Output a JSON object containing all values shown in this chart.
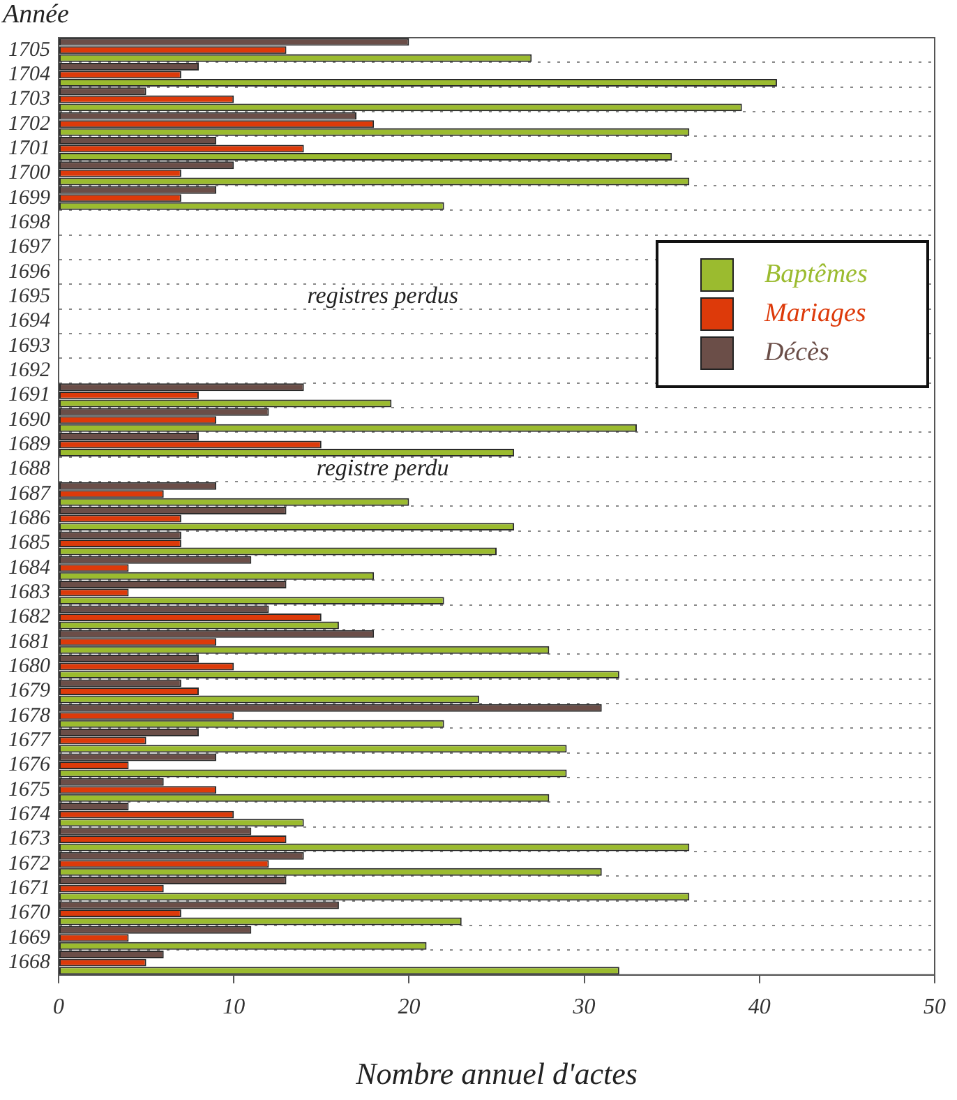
{
  "chart_data": {
    "type": "bar",
    "orientation": "horizontal",
    "xlabel": "Nombre annuel d'actes",
    "ylabel": "Année",
    "categories": [
      "1705",
      "1704",
      "1703",
      "1702",
      "1701",
      "1700",
      "1699",
      "1698",
      "1697",
      "1696",
      "1695",
      "1694",
      "1693",
      "1692",
      "1691",
      "1690",
      "1689",
      "1688",
      "1687",
      "1686",
      "1685",
      "1684",
      "1683",
      "1682",
      "1681",
      "1680",
      "1679",
      "1678",
      "1677",
      "1676",
      "1675",
      "1674",
      "1673",
      "1672",
      "1671",
      "1670",
      "1669",
      "1668"
    ],
    "series": [
      {
        "name": "Décès",
        "color": "#6b4e48",
        "values": [
          20,
          8,
          5,
          17,
          9,
          10,
          9,
          null,
          null,
          null,
          null,
          null,
          null,
          null,
          14,
          12,
          8,
          null,
          9,
          13,
          7,
          11,
          13,
          12,
          18,
          8,
          7,
          31,
          8,
          9,
          6,
          4,
          11,
          14,
          13,
          16,
          11,
          6
        ]
      },
      {
        "name": "Mariages",
        "color": "#dd3a0a",
        "values": [
          13,
          7,
          10,
          18,
          14,
          7,
          7,
          null,
          null,
          null,
          null,
          null,
          null,
          null,
          8,
          9,
          15,
          null,
          6,
          7,
          7,
          4,
          4,
          15,
          9,
          10,
          8,
          10,
          5,
          4,
          9,
          10,
          13,
          12,
          6,
          7,
          4,
          5
        ]
      },
      {
        "name": "Baptêmes",
        "color": "#9bbb2f",
        "values": [
          27,
          41,
          39,
          36,
          35,
          36,
          22,
          null,
          null,
          null,
          null,
          null,
          null,
          null,
          19,
          33,
          26,
          null,
          20,
          26,
          25,
          18,
          22,
          16,
          28,
          32,
          24,
          22,
          29,
          29,
          28,
          14,
          36,
          31,
          36,
          23,
          21,
          32
        ]
      }
    ],
    "xlim": [
      0,
      50
    ],
    "xticks": [
      0,
      10,
      20,
      30,
      40,
      50
    ],
    "grid": "y",
    "legend": "top right",
    "annotations": [
      "registres perdus",
      "registre perdu"
    ]
  }
}
